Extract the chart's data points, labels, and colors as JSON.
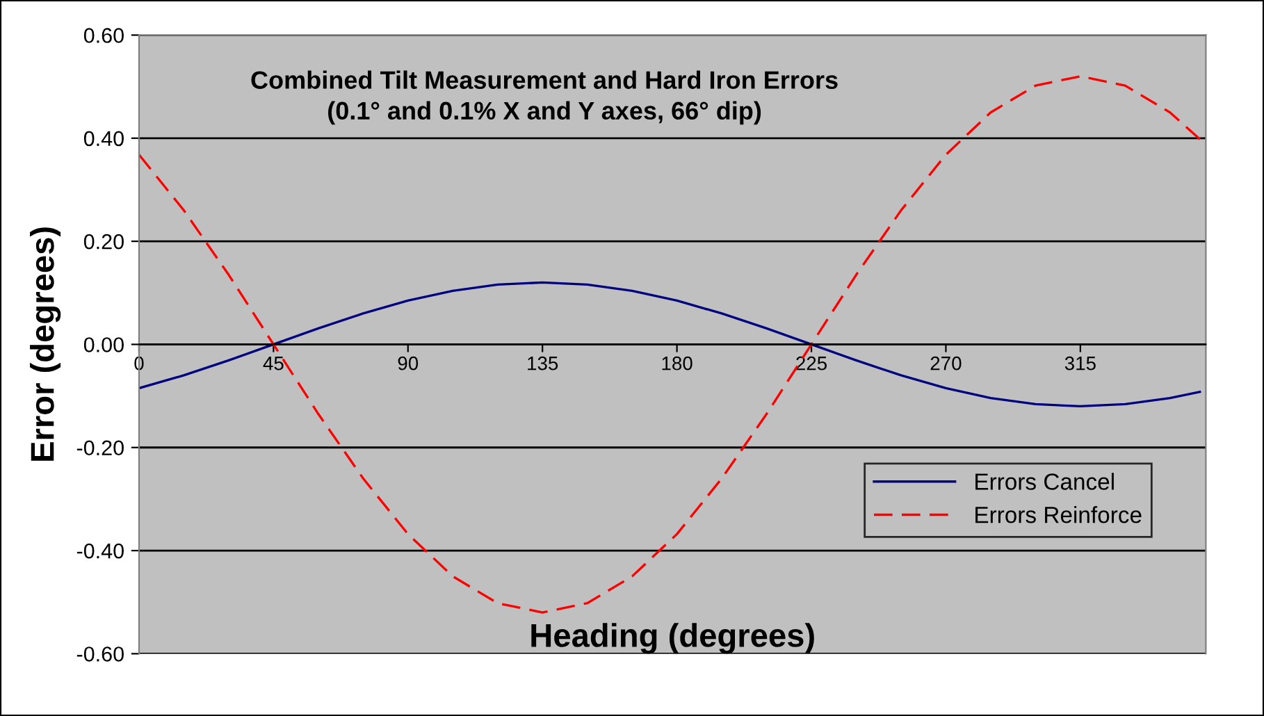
{
  "chart_data": {
    "type": "line",
    "title": "Combined Tilt Measurement and Hard Iron Errors\n(0.1° and 0.1% X and Y axes, 66° dip)",
    "xlabel": "Heading (degrees)",
    "ylabel": "Error (degrees)",
    "x": [
      0,
      15,
      30,
      45,
      60,
      75,
      90,
      105,
      120,
      135,
      150,
      165,
      180,
      195,
      210,
      225,
      240,
      255,
      270,
      285,
      300,
      315,
      330,
      345,
      355
    ],
    "series": [
      {
        "name": "Errors Cancel",
        "color": "#000080",
        "line_style": "solid",
        "values": [
          -0.085,
          -0.06,
          -0.031,
          0,
          0.031,
          0.06,
          0.085,
          0.104,
          0.116,
          0.12,
          0.116,
          0.104,
          0.085,
          0.06,
          0.031,
          0,
          -0.031,
          -0.06,
          -0.085,
          -0.104,
          -0.116,
          -0.12,
          -0.116,
          -0.104,
          -0.092
        ]
      },
      {
        "name": "Errors Reinforce",
        "color": "#ff0000",
        "line_style": "dashed",
        "values": [
          0.368,
          0.26,
          0.135,
          0,
          -0.135,
          -0.26,
          -0.368,
          -0.45,
          -0.502,
          -0.52,
          -0.502,
          -0.45,
          -0.368,
          -0.26,
          -0.135,
          0,
          0.135,
          0.26,
          0.368,
          0.45,
          0.502,
          0.52,
          0.502,
          0.45,
          0.398
        ]
      }
    ],
    "xlim": [
      0,
      357
    ],
    "xticks": [
      0,
      45,
      90,
      135,
      180,
      225,
      270,
      315
    ],
    "ylim": [
      -0.6,
      0.6
    ],
    "yticks": [
      {
        "value": -0.6,
        "label": "-0.60"
      },
      {
        "value": -0.4,
        "label": "-0.40"
      },
      {
        "value": -0.2,
        "label": "-0.20"
      },
      {
        "value": 0,
        "label": "0.00"
      },
      {
        "value": 0.2,
        "label": "0.20"
      },
      {
        "value": 0.4,
        "label": "0.40"
      },
      {
        "value": 0.6,
        "label": "0.60"
      }
    ],
    "grid": "y",
    "legend": "bottom right",
    "marker": "none"
  }
}
